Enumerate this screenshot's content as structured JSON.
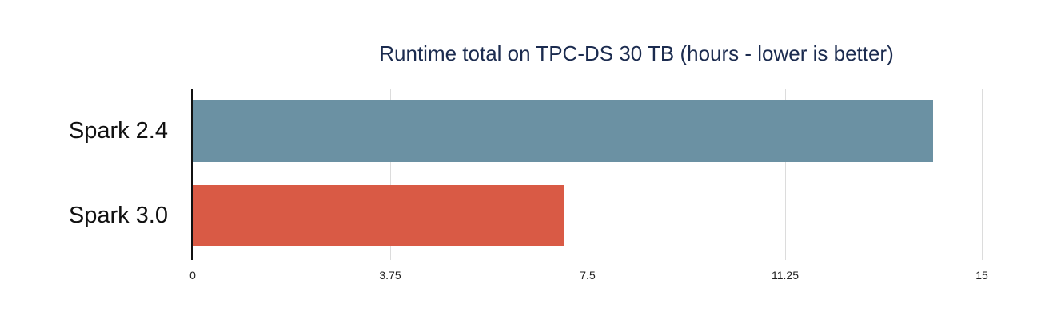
{
  "chart_data": {
    "type": "bar",
    "orientation": "horizontal",
    "title": "Runtime total on TPC-DS 30 TB (hours - lower is better)",
    "categories": [
      "Spark 2.4",
      "Spark 3.0"
    ],
    "values": [
      14.05,
      7.05
    ],
    "colors": [
      "#6b91a3",
      "#d95a45"
    ],
    "xlabel": "",
    "ylabel": "",
    "xlim": [
      0,
      15
    ],
    "x_ticks": [
      "0",
      "3.75",
      "7.5",
      "11.25",
      "15"
    ],
    "grid": true,
    "legend": "none"
  },
  "title_color": "#1b2b4f"
}
